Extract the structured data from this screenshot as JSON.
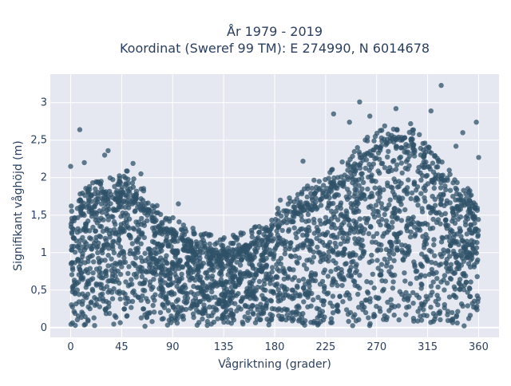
{
  "chart_data": {
    "type": "scatter",
    "title_line1": "År 1979 - 2019",
    "title_line2": "Koordinat (Sweref 99 TM): E 274990, N 6014678",
    "xlabel": "Vågriktning (grader)",
    "ylabel": "Signifikant våghöjd (m)",
    "xlim": [
      -18,
      378
    ],
    "ylim": [
      -0.13,
      3.38
    ],
    "xticks": [
      0,
      45,
      90,
      135,
      180,
      225,
      270,
      315,
      360
    ],
    "xtick_labels": [
      "0",
      "45",
      "90",
      "135",
      "180",
      "225",
      "270",
      "315",
      "360"
    ],
    "yticks": [
      0,
      0.5,
      1,
      1.5,
      2,
      2.5,
      3
    ],
    "ytick_labels": [
      "0",
      "0,5",
      "1",
      "1,5",
      "2",
      "2,5",
      "3"
    ],
    "grid": true,
    "marker_color": "#2f5168",
    "plot_background": "#e5e8f1",
    "envelope": {
      "direction": [
        0,
        10,
        20,
        30,
        40,
        50,
        60,
        70,
        80,
        90,
        100,
        110,
        120,
        130,
        140,
        150,
        160,
        170,
        180,
        190,
        200,
        210,
        220,
        230,
        240,
        250,
        260,
        270,
        280,
        290,
        300,
        310,
        320,
        330,
        340,
        350,
        360
      ],
      "upper_height": [
        1.45,
        1.65,
        1.8,
        1.85,
        1.85,
        1.95,
        1.75,
        1.6,
        1.4,
        1.3,
        1.2,
        1.15,
        1.1,
        1.05,
        1.05,
        1.1,
        1.15,
        1.25,
        1.4,
        1.55,
        1.65,
        1.75,
        1.85,
        1.95,
        2.05,
        2.2,
        2.35,
        2.5,
        2.55,
        2.55,
        2.5,
        2.4,
        2.2,
        2.0,
        1.85,
        1.7,
        1.5
      ]
    },
    "outliers": [
      {
        "x": 8,
        "y": 2.64
      },
      {
        "x": 0,
        "y": 2.15
      },
      {
        "x": 12,
        "y": 2.2
      },
      {
        "x": 30,
        "y": 2.3
      },
      {
        "x": 33,
        "y": 2.36
      },
      {
        "x": 55,
        "y": 2.19
      },
      {
        "x": 62,
        "y": 2.05
      },
      {
        "x": 95,
        "y": 1.65
      },
      {
        "x": 185,
        "y": 1.7
      },
      {
        "x": 205,
        "y": 2.22
      },
      {
        "x": 232,
        "y": 2.85
      },
      {
        "x": 246,
        "y": 2.74
      },
      {
        "x": 255,
        "y": 3.01
      },
      {
        "x": 264,
        "y": 2.82
      },
      {
        "x": 287,
        "y": 2.92
      },
      {
        "x": 300,
        "y": 2.72
      },
      {
        "x": 318,
        "y": 2.89
      },
      {
        "x": 327,
        "y": 3.23
      },
      {
        "x": 340,
        "y": 2.42
      },
      {
        "x": 346,
        "y": 2.6
      },
      {
        "x": 358,
        "y": 2.74
      },
      {
        "x": 360,
        "y": 2.27
      }
    ]
  }
}
